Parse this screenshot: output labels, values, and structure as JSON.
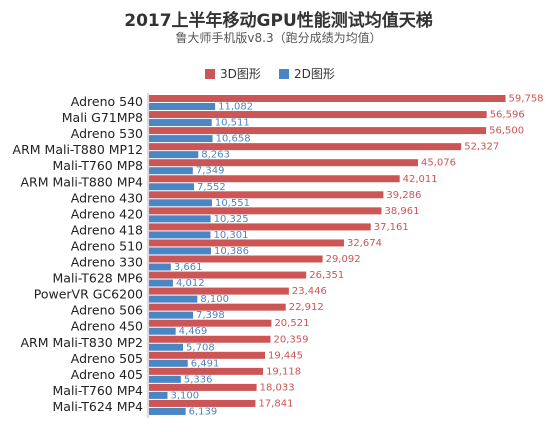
{
  "title": "2017上半年移动GPU性能测试均值天梯",
  "subtitle": "鲁大师手机版v8.3（跑分成绩为均值）",
  "colors": {
    "3d": "#cc5555",
    "2d": "#4a86c5"
  },
  "chart_data": {
    "type": "bar",
    "orientation": "horizontal",
    "title": "2017上半年移动GPU性能测试均值天梯",
    "subtitle": "鲁大师手机版v8.3（跑分成绩为均值）",
    "legend_position": "top",
    "grid": false,
    "xlim": [
      0,
      60000
    ],
    "categories": [
      "Adreno 540",
      "Mali G71MP8",
      "Adreno 530",
      "ARM Mali-T880 MP12",
      "Mali-T760 MP8",
      "ARM Mali-T880 MP4",
      "Adreno 430",
      "Adreno 420",
      "Adreno 418",
      "Adreno 510",
      "Adreno 330",
      "Mali-T628 MP6",
      "PowerVR GC6200",
      "Adreno 506",
      "Adreno 450",
      "ARM Mali-T830 MP2",
      "Adreno 505",
      "Adreno 405",
      "Mali-T760 MP4",
      "Mali-T624 MP4"
    ],
    "series": [
      {
        "name": "3D图形",
        "values": [
          59758,
          56596,
          56500,
          52327,
          45076,
          42011,
          39286,
          38961,
          37161,
          32674,
          29092,
          26351,
          23446,
          22912,
          20521,
          20359,
          19445,
          19118,
          18033,
          17841
        ],
        "labels": [
          "59,758",
          "56,596",
          "56,500",
          "52,327",
          "45,076",
          "42,011",
          "39,286",
          "38,961",
          "37,161",
          "32,674",
          "29,092",
          "26,351",
          "23,446",
          "22,912",
          "20,521",
          "20,359",
          "19,445",
          "19,118",
          "18,033",
          "17,841"
        ]
      },
      {
        "name": "2D图形",
        "values": [
          11082,
          10511,
          10658,
          8263,
          7349,
          7552,
          10551,
          10325,
          10301,
          10386,
          3661,
          4012,
          8100,
          7398,
          4469,
          5708,
          6491,
          5336,
          3100,
          6139
        ],
        "labels": [
          "11,082",
          "10,511",
          "10,658",
          "8,263",
          "7,349",
          "7,552",
          "10,551",
          "10,325",
          "10,301",
          "10,386",
          "3,661",
          "4,012",
          "8,100",
          "7,398",
          "4,469",
          "5,708",
          "6,491",
          "5,336",
          "3,100",
          "6,139"
        ]
      }
    ]
  }
}
